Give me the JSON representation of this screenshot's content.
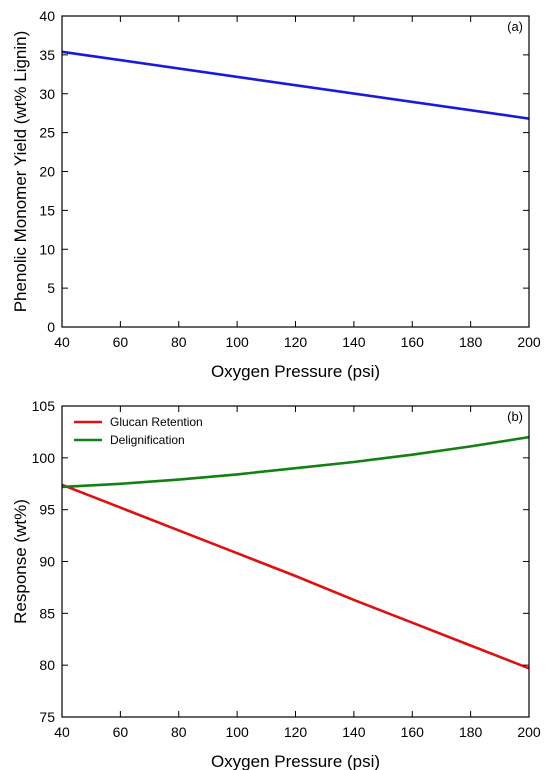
{
  "chart_data": [
    {
      "type": "line",
      "panel_label": "(a)",
      "xlabel": "Oxygen Pressure (psi)",
      "ylabel": "Phenolic Monomer Yield (wt% Lignin)",
      "xlim": [
        40,
        200
      ],
      "ylim": [
        0,
        40
      ],
      "xticks": [
        40,
        60,
        80,
        100,
        120,
        140,
        160,
        180,
        200
      ],
      "yticks": [
        0,
        5,
        10,
        15,
        20,
        25,
        30,
        35,
        40
      ],
      "grid": false,
      "series": [
        {
          "color": "#1a1adb",
          "x": [
            40,
            200
          ],
          "y": [
            35.4,
            26.8
          ]
        }
      ]
    },
    {
      "type": "line",
      "panel_label": "(b)",
      "xlabel": "Oxygen Pressure (psi)",
      "ylabel": "Response (wt%)",
      "xlim": [
        40,
        200
      ],
      "ylim": [
        75,
        105
      ],
      "xticks": [
        40,
        60,
        80,
        100,
        120,
        140,
        160,
        180,
        200
      ],
      "yticks": [
        75,
        80,
        85,
        90,
        95,
        100,
        105
      ],
      "grid": false,
      "legend_position": "top-left",
      "series": [
        {
          "name": "Glucan Retention",
          "color": "#e01010",
          "x": [
            40,
            60,
            80,
            100,
            120,
            140,
            160,
            180,
            200
          ],
          "y": [
            97.4,
            95.2,
            93.0,
            90.8,
            88.6,
            86.3,
            84.1,
            81.9,
            79.7
          ]
        },
        {
          "name": "Delignification",
          "color": "#128012",
          "x": [
            40,
            60,
            80,
            100,
            120,
            140,
            160,
            180,
            200
          ],
          "y": [
            97.2,
            97.5,
            97.9,
            98.4,
            99.0,
            99.6,
            100.3,
            101.1,
            102.0
          ]
        }
      ]
    }
  ]
}
